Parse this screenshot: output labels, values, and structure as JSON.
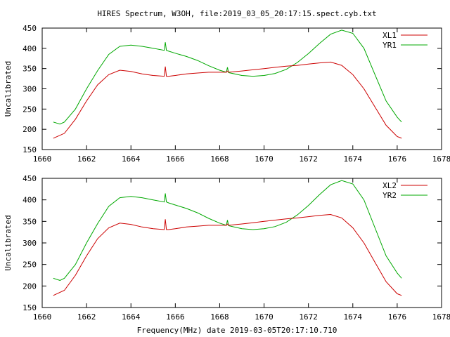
{
  "title": "HIRES Spectrum, W3OH, file:2019_03_05_20:17:15.spect.cyb.txt",
  "xlabel": "Frequency(MHz) date 2019-03-05T20:17:10.710",
  "colors": {
    "red": "#cc0000",
    "green": "#00a800",
    "axis": "#000000"
  },
  "chart_data": [
    {
      "type": "line",
      "ylabel": "Uncalibrated",
      "xlim": [
        1660,
        1678
      ],
      "ylim": [
        150,
        450
      ],
      "xticks": [
        1660,
        1662,
        1664,
        1666,
        1668,
        1670,
        1672,
        1674,
        1676,
        1678
      ],
      "yticks": [
        150,
        200,
        250,
        300,
        350,
        400,
        450
      ],
      "legend": "top-right",
      "grid": false,
      "series": [
        {
          "name": "XL1",
          "color": "#cc0000",
          "x": [
            1660.5,
            1661.0,
            1661.5,
            1662.0,
            1662.5,
            1663.0,
            1663.5,
            1664.0,
            1664.5,
            1665.0,
            1665.5,
            1665.55,
            1665.6,
            1665.7,
            1666.0,
            1666.5,
            1667.0,
            1667.5,
            1668.0,
            1668.3,
            1668.35,
            1668.4,
            1669.0,
            1669.5,
            1670.0,
            1670.5,
            1671.0,
            1671.5,
            1672.0,
            1672.5,
            1673.0,
            1673.5,
            1674.0,
            1674.5,
            1675.0,
            1675.5,
            1676.0,
            1676.2
          ],
          "y": [
            178,
            190,
            225,
            270,
            310,
            335,
            346,
            343,
            337,
            333,
            331,
            355,
            331,
            331,
            333,
            337,
            339,
            341,
            341,
            341,
            344,
            341,
            344,
            347,
            350,
            353,
            356,
            358,
            361,
            364,
            366,
            358,
            335,
            300,
            255,
            210,
            182,
            178
          ]
        },
        {
          "name": "YR1",
          "color": "#00a800",
          "x": [
            1660.5,
            1660.8,
            1661.0,
            1661.5,
            1662.0,
            1662.5,
            1663.0,
            1663.5,
            1664.0,
            1664.5,
            1665.0,
            1665.5,
            1665.55,
            1665.6,
            1665.7,
            1666.0,
            1666.5,
            1667.0,
            1667.5,
            1668.0,
            1668.3,
            1668.35,
            1668.4,
            1669.0,
            1669.5,
            1670.0,
            1670.5,
            1671.0,
            1671.5,
            1672.0,
            1672.5,
            1673.0,
            1673.5,
            1674.0,
            1674.5,
            1675.0,
            1675.5,
            1676.0,
            1676.2
          ],
          "y": [
            218,
            213,
            218,
            250,
            300,
            345,
            385,
            405,
            408,
            405,
            400,
            395,
            415,
            395,
            393,
            388,
            380,
            370,
            357,
            346,
            341,
            353,
            340,
            333,
            331,
            333,
            338,
            348,
            365,
            387,
            412,
            435,
            445,
            437,
            400,
            335,
            270,
            230,
            218
          ]
        }
      ]
    },
    {
      "type": "line",
      "ylabel": "Uncalibrated",
      "xlim": [
        1660,
        1678
      ],
      "ylim": [
        150,
        450
      ],
      "xticks": [
        1660,
        1662,
        1664,
        1666,
        1668,
        1670,
        1672,
        1674,
        1676,
        1678
      ],
      "yticks": [
        150,
        200,
        250,
        300,
        350,
        400,
        450
      ],
      "legend": "top-right",
      "grid": false,
      "series": [
        {
          "name": "XL2",
          "color": "#cc0000",
          "x": [
            1660.5,
            1661.0,
            1661.5,
            1662.0,
            1662.5,
            1663.0,
            1663.5,
            1664.0,
            1664.5,
            1665.0,
            1665.5,
            1665.55,
            1665.6,
            1665.7,
            1666.0,
            1666.5,
            1667.0,
            1667.5,
            1668.0,
            1668.3,
            1668.35,
            1668.4,
            1669.0,
            1669.5,
            1670.0,
            1670.5,
            1671.0,
            1671.5,
            1672.0,
            1672.5,
            1673.0,
            1673.5,
            1674.0,
            1674.5,
            1675.0,
            1675.5,
            1676.0,
            1676.2
          ],
          "y": [
            178,
            190,
            225,
            270,
            310,
            335,
            346,
            343,
            337,
            333,
            331,
            355,
            331,
            331,
            333,
            337,
            339,
            341,
            341,
            341,
            344,
            341,
            344,
            347,
            350,
            353,
            356,
            358,
            361,
            364,
            366,
            358,
            335,
            300,
            255,
            210,
            182,
            178
          ]
        },
        {
          "name": "YR2",
          "color": "#00a800",
          "x": [
            1660.5,
            1660.8,
            1661.0,
            1661.5,
            1662.0,
            1662.5,
            1663.0,
            1663.5,
            1664.0,
            1664.5,
            1665.0,
            1665.5,
            1665.55,
            1665.6,
            1665.7,
            1666.0,
            1666.5,
            1667.0,
            1667.5,
            1668.0,
            1668.3,
            1668.35,
            1668.4,
            1669.0,
            1669.5,
            1670.0,
            1670.5,
            1671.0,
            1671.5,
            1672.0,
            1672.5,
            1673.0,
            1673.5,
            1674.0,
            1674.5,
            1675.0,
            1675.5,
            1676.0,
            1676.2
          ],
          "y": [
            218,
            213,
            218,
            250,
            300,
            345,
            385,
            405,
            408,
            405,
            400,
            395,
            415,
            395,
            393,
            388,
            380,
            370,
            357,
            346,
            341,
            353,
            340,
            333,
            331,
            333,
            338,
            348,
            365,
            387,
            412,
            435,
            445,
            437,
            400,
            335,
            270,
            230,
            218
          ]
        }
      ]
    }
  ]
}
